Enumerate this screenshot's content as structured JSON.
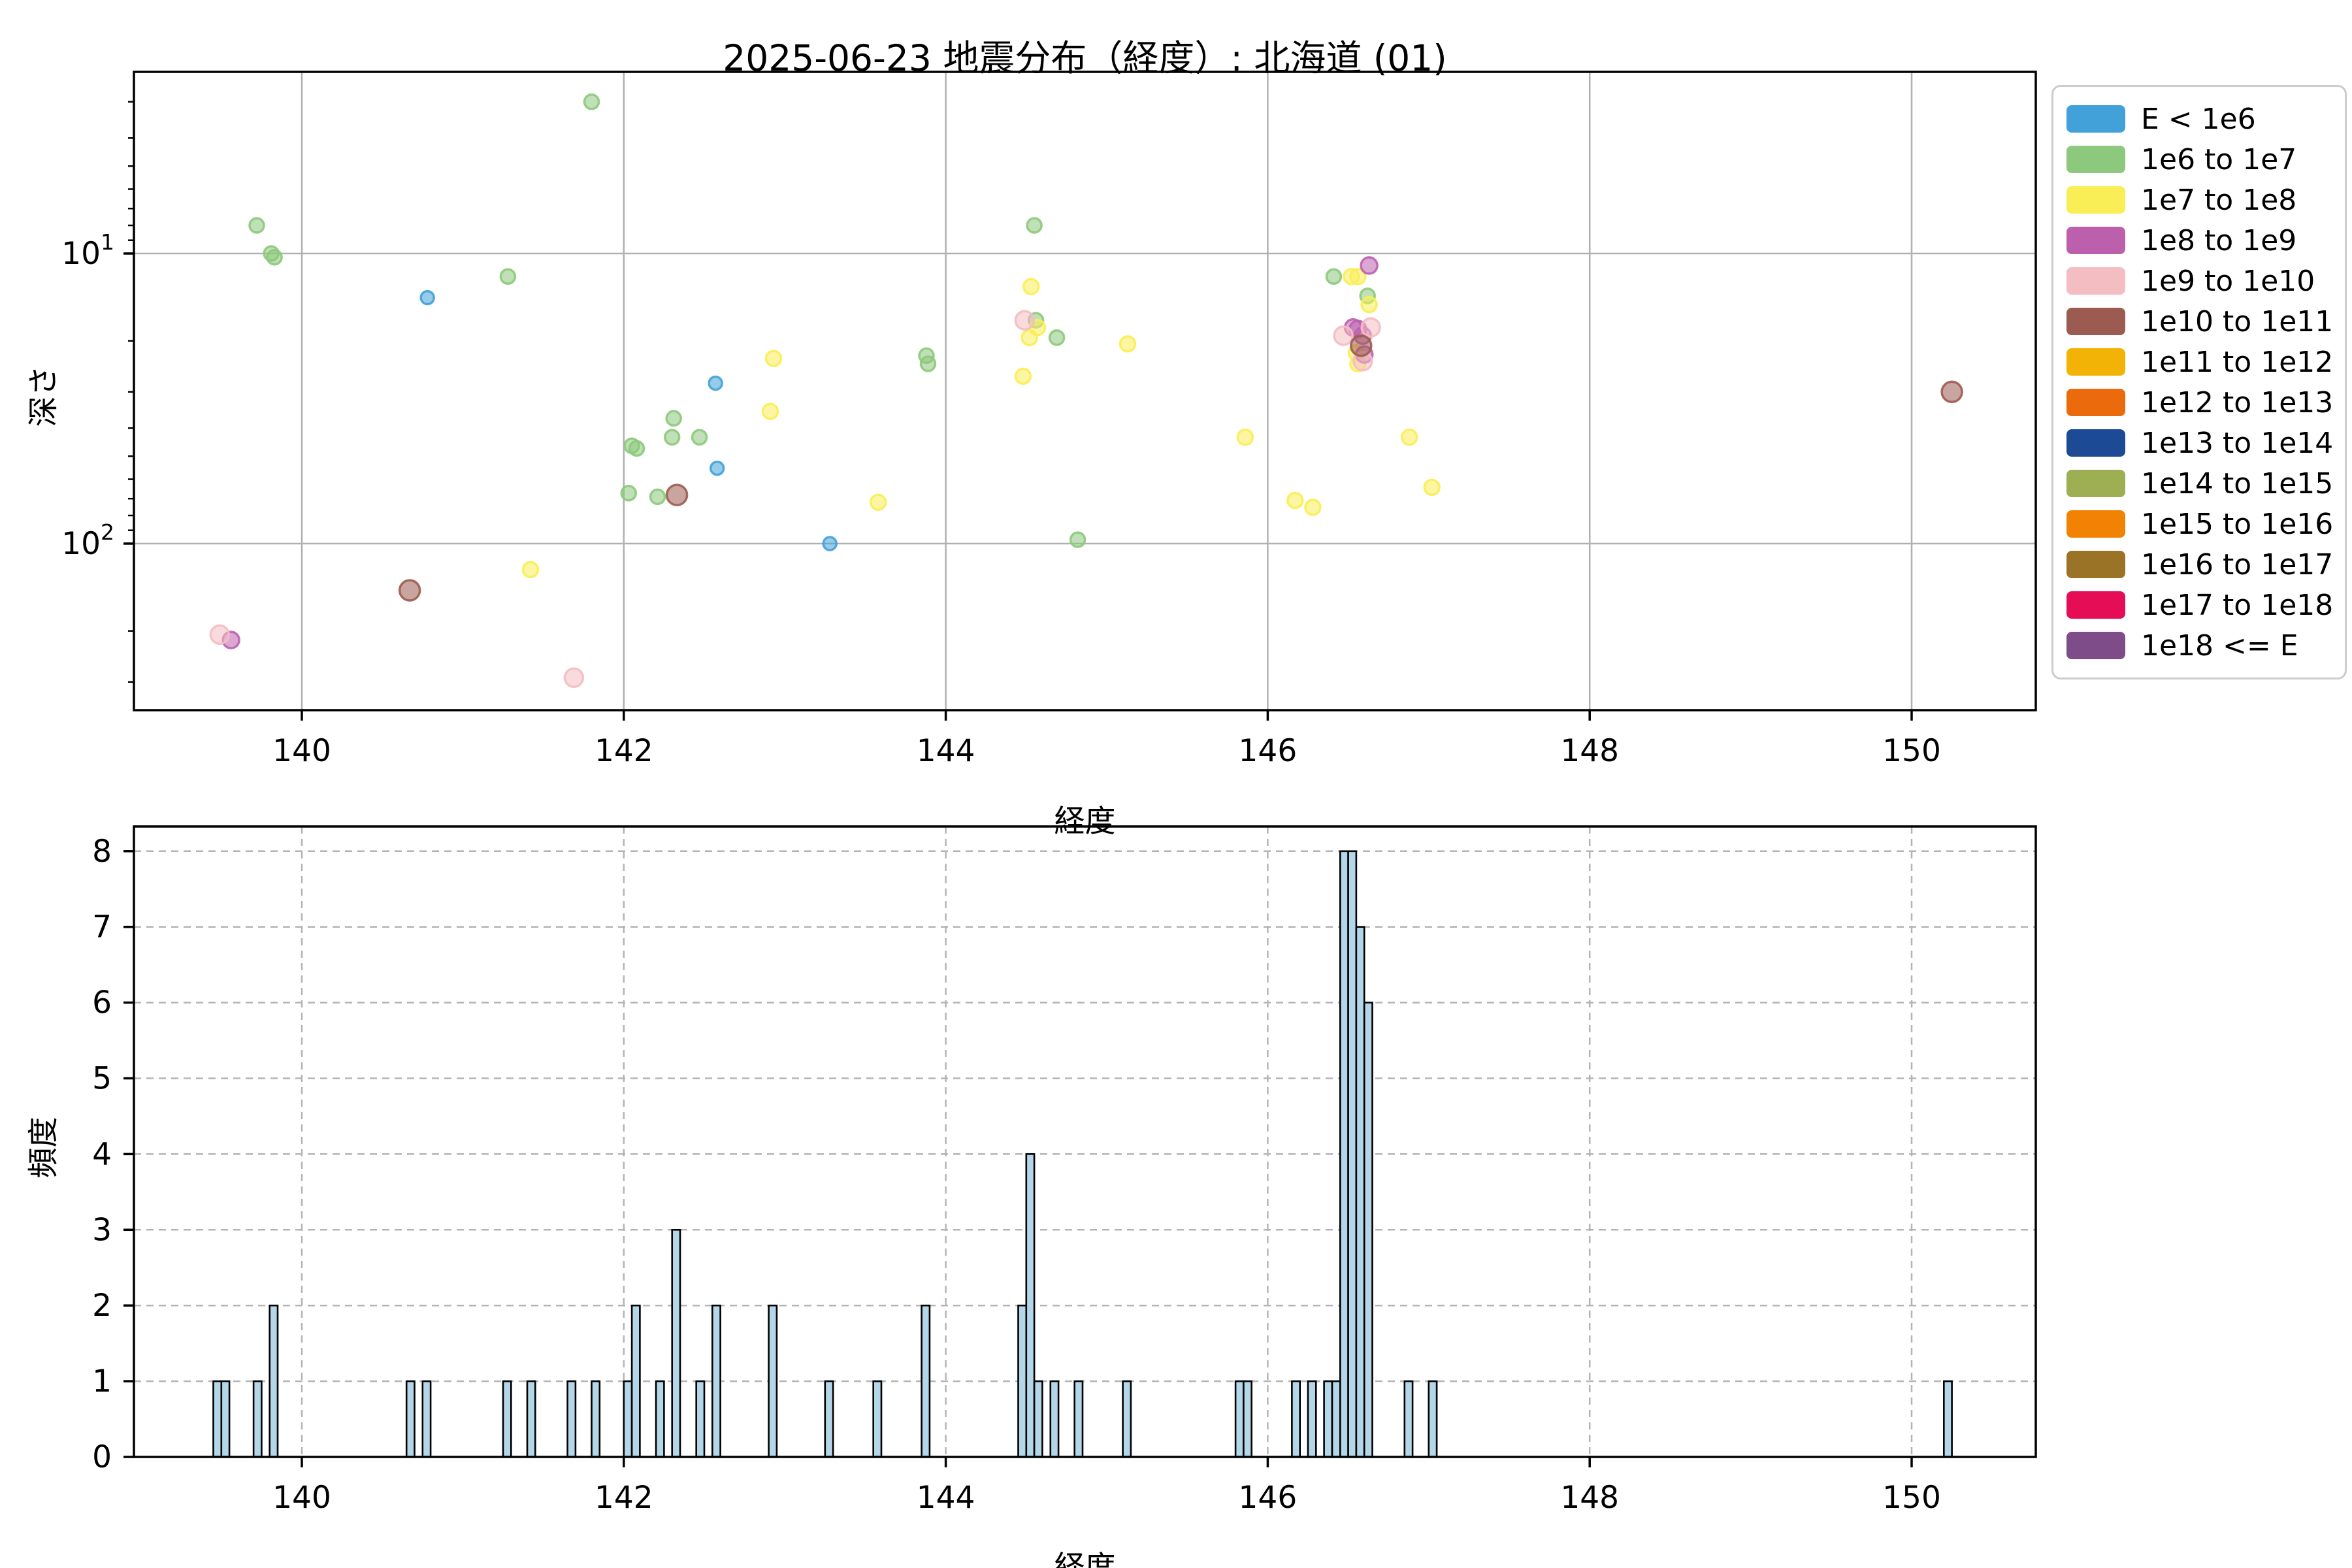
{
  "title": "2025-06-23 地震分布（経度）: 北海道 (01)",
  "labels": {
    "xlabel": "経度",
    "scatter_ylabel": "深さ",
    "hist_ylabel": "頻度"
  },
  "legend": {
    "items": [
      {
        "label": "E < 1e6",
        "color": "#42a1d8"
      },
      {
        "label": "1e6 to 1e7",
        "color": "#8dc97c"
      },
      {
        "label": "1e7 to 1e8",
        "color": "#f9ee55"
      },
      {
        "label": "1e8 to 1e9",
        "color": "#bc60ae"
      },
      {
        "label": "1e9 to 1e10",
        "color": "#f4bdc2"
      },
      {
        "label": "1e10 to 1e11",
        "color": "#9c5b50"
      },
      {
        "label": "1e11 to 1e12",
        "color": "#f3b206"
      },
      {
        "label": "1e12 to 1e13",
        "color": "#ea6a0c"
      },
      {
        "label": "1e13 to 1e14",
        "color": "#1d4a94"
      },
      {
        "label": "1e14 to 1e15",
        "color": "#9dae53"
      },
      {
        "label": "1e15 to 1e16",
        "color": "#f28204"
      },
      {
        "label": "1e16 to 1e17",
        "color": "#9b7327"
      },
      {
        "label": "1e17 to 1e18",
        "color": "#e50d56"
      },
      {
        "label": "1e18 <= E",
        "color": "#7d4c89"
      }
    ]
  },
  "chart_data": [
    {
      "type": "scatter",
      "title": "2025-06-23 地震分布（経度）: 北海道 (01)",
      "xlabel": "経度",
      "ylabel": "深さ",
      "xlim": [
        138.96,
        150.79
      ],
      "x_ticks": [
        140,
        142,
        144,
        146,
        148,
        150
      ],
      "y_scale": "log",
      "y_inverted": true,
      "ylim_top_depth": 2.37,
      "ylim_bottom_depth": 375,
      "y_major_ticks": [
        10,
        100
      ],
      "y_minor_ticks": [
        3,
        4,
        5,
        6,
        7,
        8,
        9,
        20,
        30,
        40,
        50,
        60,
        70,
        80,
        90,
        200,
        300
      ],
      "grid": "major-solid",
      "series": [
        {
          "name": "E < 1e6",
          "color": "#42a1d8",
          "radius": 10,
          "points": [
            [
              140.78,
              14.2
            ],
            [
              142.57,
              28
            ],
            [
              142.58,
              55
            ],
            [
              143.28,
              100
            ]
          ]
        },
        {
          "name": "1e6 to 1e7",
          "color": "#8dc97c",
          "radius": 11,
          "points": [
            [
              141.8,
              3.0
            ],
            [
              139.72,
              8.0
            ],
            [
              139.81,
              10.0
            ],
            [
              139.83,
              10.3
            ],
            [
              141.28,
              12.0
            ],
            [
              142.31,
              37
            ],
            [
              142.3,
              43
            ],
            [
              142.47,
              43
            ],
            [
              142.05,
              46
            ],
            [
              142.08,
              47
            ],
            [
              142.03,
              67
            ],
            [
              142.21,
              69
            ],
            [
              143.88,
              22.5
            ],
            [
              143.89,
              24
            ],
            [
              144.55,
              8.0
            ],
            [
              144.56,
              17
            ],
            [
              144.69,
              19.5
            ],
            [
              144.82,
              97
            ],
            [
              146.41,
              12
            ],
            [
              146.62,
              14
            ]
          ]
        },
        {
          "name": "1e7 to 1e8",
          "color": "#f9ee55",
          "radius": 11.5,
          "points": [
            [
              141.42,
              123
            ],
            [
              142.93,
              23
            ],
            [
              142.91,
              35
            ],
            [
              143.58,
              72
            ],
            [
              144.53,
              13
            ],
            [
              144.57,
              18
            ],
            [
              144.52,
              19.5
            ],
            [
              144.48,
              26.5
            ],
            [
              145.13,
              20.5
            ],
            [
              145.86,
              43
            ],
            [
              146.17,
              71
            ],
            [
              146.28,
              75
            ],
            [
              146.88,
              43
            ],
            [
              147.02,
              64
            ],
            [
              146.52,
              12
            ],
            [
              146.56,
              12
            ],
            [
              146.63,
              15
            ],
            [
              146.55,
              22
            ],
            [
              146.56,
              24
            ]
          ]
        },
        {
          "name": "1e8 to 1e9",
          "color": "#bc60ae",
          "radius": 12.5,
          "points": [
            [
              139.56,
              215
            ],
            [
              146.63,
              11
            ],
            [
              146.53,
              18
            ],
            [
              146.56,
              18.2
            ],
            [
              146.59,
              19.2
            ],
            [
              146.6,
              22.3
            ]
          ]
        },
        {
          "name": "1e9 to 1e10",
          "color": "#f4bdc2",
          "radius": 14,
          "points": [
            [
              139.49,
              206
            ],
            [
              141.69,
              290
            ],
            [
              144.49,
              17
            ],
            [
              146.64,
              18
            ],
            [
              146.47,
              19.2
            ],
            [
              146.59,
              23.5
            ]
          ]
        },
        {
          "name": "1e10 to 1e11",
          "color": "#9c5b50",
          "radius": 15.5,
          "points": [
            [
              140.67,
              145
            ],
            [
              142.33,
              68
            ],
            [
              146.58,
              20.8
            ],
            [
              150.25,
              30
            ]
          ]
        }
      ]
    },
    {
      "type": "bar",
      "xlabel": "経度",
      "ylabel": "頻度",
      "xlim": [
        138.96,
        150.79
      ],
      "x_ticks": [
        140,
        142,
        144,
        146,
        148,
        150
      ],
      "y_ticks": [
        0,
        1,
        2,
        3,
        4,
        5,
        6,
        7,
        8
      ],
      "ylim": [
        0,
        8.33
      ],
      "bin_width": 0.05,
      "bar_color": "#b3d7e8",
      "bar_edge": "#000000",
      "grid": "dashed",
      "bars": [
        [
          139.45,
          1
        ],
        [
          139.5,
          1
        ],
        [
          139.7,
          1
        ],
        [
          139.8,
          2
        ],
        [
          140.65,
          1
        ],
        [
          140.75,
          1
        ],
        [
          141.25,
          1
        ],
        [
          141.4,
          1
        ],
        [
          141.65,
          1
        ],
        [
          141.8,
          1
        ],
        [
          142.0,
          1
        ],
        [
          142.05,
          2
        ],
        [
          142.2,
          1
        ],
        [
          142.3,
          3
        ],
        [
          142.45,
          1
        ],
        [
          142.55,
          2
        ],
        [
          142.9,
          2
        ],
        [
          143.25,
          1
        ],
        [
          143.55,
          1
        ],
        [
          143.85,
          2
        ],
        [
          144.45,
          2
        ],
        [
          144.5,
          4
        ],
        [
          144.55,
          1
        ],
        [
          144.65,
          1
        ],
        [
          144.8,
          1
        ],
        [
          145.1,
          1
        ],
        [
          145.8,
          1
        ],
        [
          145.85,
          1
        ],
        [
          146.15,
          1
        ],
        [
          146.25,
          1
        ],
        [
          146.35,
          1
        ],
        [
          146.4,
          1
        ],
        [
          146.45,
          8
        ],
        [
          146.5,
          8
        ],
        [
          146.55,
          7
        ],
        [
          146.6,
          6
        ],
        [
          146.85,
          1
        ],
        [
          147.0,
          1
        ],
        [
          150.2,
          1
        ]
      ]
    }
  ]
}
